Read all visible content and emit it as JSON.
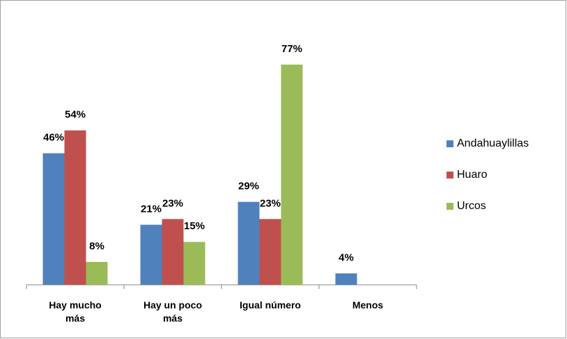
{
  "chart_data": {
    "type": "bar",
    "categories": [
      "Hay mucho más",
      "Hay un poco más",
      "Igual número",
      "Menos"
    ],
    "series": [
      {
        "name": "Andahuaylillas",
        "color": "#4f81bd",
        "values": [
          46,
          21,
          29,
          4
        ],
        "value_labels": [
          "46%",
          "21%",
          "29%",
          "4%"
        ]
      },
      {
        "name": "Huaro",
        "color": "#c0504d",
        "values": [
          54,
          23,
          23,
          null
        ],
        "value_labels": [
          "54%",
          "23%",
          "23%",
          null
        ]
      },
      {
        "name": "Urcos",
        "color": "#9bbb59",
        "values": [
          8,
          15,
          77,
          null
        ],
        "value_labels": [
          "8%",
          "15%",
          "77%",
          null
        ]
      }
    ],
    "legend": "right"
  }
}
